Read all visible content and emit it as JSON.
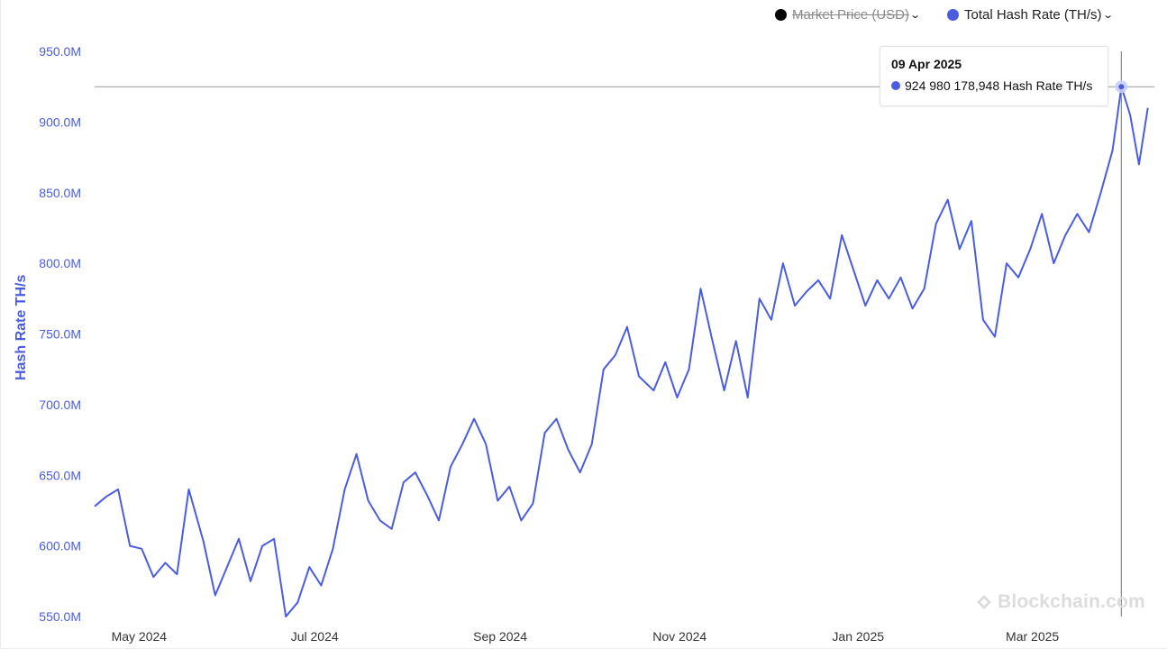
{
  "legend": {
    "market_price": {
      "label": "Market Price (USD)",
      "color": "#000000",
      "disabled": true
    },
    "hash_rate": {
      "label": "Total Hash Rate (TH/s)",
      "color": "#4a5de0"
    },
    "chevron": "⌄"
  },
  "tooltip": {
    "date": "09 Apr 2025",
    "value_text": "924 980 178,948 Hash Rate TH/s",
    "value": 924980178.948
  },
  "watermark": "Blockchain.com",
  "chart_data": {
    "type": "line",
    "ylabel": "Hash Rate TH/s",
    "ylim": [
      550000000,
      950000000
    ],
    "yticks": [
      550000000,
      600000000,
      650000000,
      700000000,
      750000000,
      800000000,
      850000000,
      900000000,
      950000000
    ],
    "ytick_labels": [
      "550.0M",
      "600.0M",
      "650.0M",
      "700.0M",
      "750.0M",
      "800.0M",
      "850.0M",
      "900.0M",
      "950.0M"
    ],
    "xlim": [
      "2024-04-25",
      "2025-04-19"
    ],
    "xticks": [
      "2024-05-01",
      "2024-07-01",
      "2024-09-01",
      "2024-11-01",
      "2025-01-01",
      "2025-03-01"
    ],
    "xtick_labels": [
      "May 2024",
      "Jul 2024",
      "Sep 2024",
      "Nov 2024",
      "Jan 2025",
      "Mar 2025"
    ],
    "grid": false,
    "legend_position": "top-right",
    "series": [
      {
        "name": "Total Hash Rate (TH/s)",
        "color": "#4a5de0",
        "x": [
          "2024-04-25",
          "2024-04-29",
          "2024-05-03",
          "2024-05-07",
          "2024-05-11",
          "2024-05-15",
          "2024-05-19",
          "2024-05-23",
          "2024-05-27",
          "2024-06-01",
          "2024-06-05",
          "2024-06-09",
          "2024-06-13",
          "2024-06-17",
          "2024-06-21",
          "2024-06-25",
          "2024-06-29",
          "2024-07-03",
          "2024-07-07",
          "2024-07-11",
          "2024-07-15",
          "2024-07-19",
          "2024-07-23",
          "2024-07-27",
          "2024-07-31",
          "2024-08-04",
          "2024-08-08",
          "2024-08-12",
          "2024-08-16",
          "2024-08-20",
          "2024-08-24",
          "2024-08-28",
          "2024-09-01",
          "2024-09-05",
          "2024-09-09",
          "2024-09-13",
          "2024-09-17",
          "2024-09-21",
          "2024-09-25",
          "2024-09-29",
          "2024-10-03",
          "2024-10-07",
          "2024-10-11",
          "2024-10-15",
          "2024-10-19",
          "2024-10-23",
          "2024-10-27",
          "2024-11-01",
          "2024-11-05",
          "2024-11-09",
          "2024-11-13",
          "2024-11-17",
          "2024-11-21",
          "2024-11-25",
          "2024-11-29",
          "2024-12-03",
          "2024-12-07",
          "2024-12-11",
          "2024-12-15",
          "2024-12-19",
          "2024-12-23",
          "2024-12-27",
          "2024-12-31",
          "2025-01-04",
          "2025-01-08",
          "2025-01-12",
          "2025-01-16",
          "2025-01-20",
          "2025-01-24",
          "2025-01-28",
          "2025-02-01",
          "2025-02-05",
          "2025-02-09",
          "2025-02-13",
          "2025-02-17",
          "2025-02-21",
          "2025-02-25",
          "2025-03-01",
          "2025-03-05",
          "2025-03-09",
          "2025-03-13",
          "2025-03-17",
          "2025-03-21",
          "2025-03-25",
          "2025-03-29",
          "2025-04-02",
          "2025-04-06",
          "2025-04-09",
          "2025-04-12",
          "2025-04-15",
          "2025-04-18"
        ],
        "values": [
          628000000,
          635000000,
          640000000,
          600000000,
          598000000,
          578000000,
          588000000,
          580000000,
          640000000,
          603000000,
          565000000,
          585000000,
          605000000,
          575000000,
          600000000,
          605000000,
          550000000,
          560000000,
          585000000,
          572000000,
          598000000,
          640000000,
          665000000,
          632000000,
          618000000,
          612000000,
          645000000,
          652000000,
          636000000,
          618000000,
          656000000,
          672000000,
          690000000,
          672000000,
          632000000,
          642000000,
          618000000,
          630000000,
          680000000,
          690000000,
          668000000,
          652000000,
          672000000,
          725000000,
          735000000,
          755000000,
          720000000,
          710000000,
          730000000,
          705000000,
          725000000,
          782000000,
          745000000,
          710000000,
          745000000,
          705000000,
          775000000,
          760000000,
          800000000,
          770000000,
          780000000,
          788000000,
          775000000,
          820000000,
          795000000,
          770000000,
          788000000,
          775000000,
          790000000,
          768000000,
          782000000,
          828000000,
          845000000,
          810000000,
          830000000,
          760000000,
          748000000,
          800000000,
          790000000,
          810000000,
          835000000,
          800000000,
          820000000,
          835000000,
          822000000,
          850000000,
          880000000,
          924980178,
          905000000,
          870000000,
          910000000
        ]
      }
    ]
  }
}
